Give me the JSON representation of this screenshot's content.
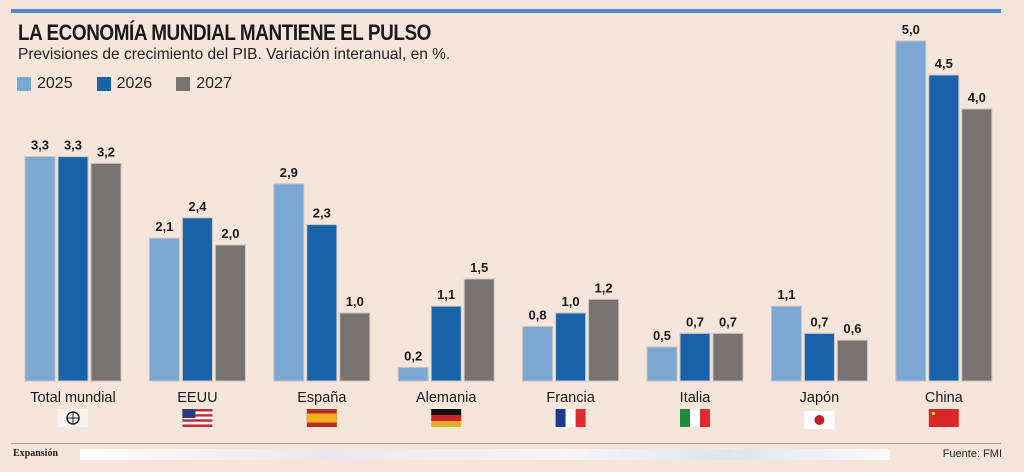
{
  "chart_data": {
    "type": "bar",
    "title": "LA ECONOMÍA MUNDIAL MANTIENE EL PULSO",
    "subtitle": "Previsiones de crecimiento del PIB. Variación interanual, en %.",
    "categories": [
      "Total mundial",
      "EEUU",
      "España",
      "Alemania",
      "Francia",
      "Italia",
      "Japón",
      "China"
    ],
    "flag_icons": [
      "globe-icon",
      "flag-us-icon",
      "flag-es-icon",
      "flag-de-icon",
      "flag-fr-icon",
      "flag-it-icon",
      "flag-jp-icon",
      "flag-cn-icon"
    ],
    "series": [
      {
        "name": "2025",
        "color": "#7ba7d2",
        "values": [
          3.3,
          2.1,
          2.9,
          0.2,
          0.8,
          0.5,
          1.1,
          5.0
        ],
        "labels": [
          "3,3",
          "2,1",
          "2,9",
          "0,2",
          "0,8",
          "0,5",
          "1,1",
          "5,0"
        ]
      },
      {
        "name": "2026",
        "color": "#1762a8",
        "values": [
          3.3,
          2.4,
          2.3,
          1.1,
          1.0,
          0.7,
          0.7,
          4.5
        ],
        "labels": [
          "3,3",
          "2,4",
          "2,3",
          "1,1",
          "1,0",
          "0,7",
          "0,7",
          "4,5"
        ]
      },
      {
        "name": "2027",
        "color": "#767370",
        "values": [
          3.2,
          2.0,
          1.0,
          1.5,
          1.2,
          0.7,
          0.6,
          4.0
        ],
        "labels": [
          "3,2",
          "2,0",
          "1,0",
          "1,5",
          "1,2",
          "0,7",
          "0,6",
          "4,0"
        ]
      }
    ],
    "xlabel": "",
    "ylabel": "",
    "ylim": [
      0,
      5.0
    ],
    "grid": false,
    "legend": "top-left"
  },
  "footer": {
    "brand": "Expansión",
    "source": "Fuente: FMI"
  }
}
